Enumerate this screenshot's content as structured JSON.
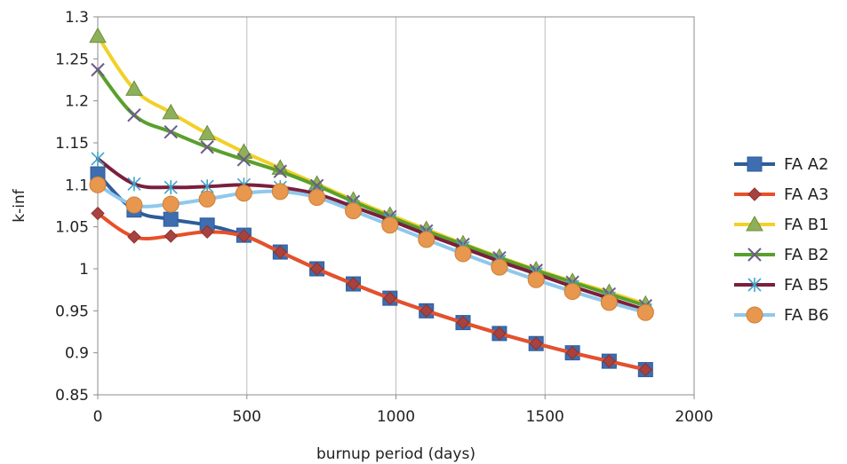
{
  "chart_data": {
    "type": "line",
    "title": "",
    "xlabel": "burnup period (days)",
    "ylabel": "k-inf",
    "xlim": [
      0,
      2000
    ],
    "ylim": [
      0.85,
      1.3
    ],
    "x_ticks": [
      "0",
      "500",
      "1000",
      "1500",
      "2000"
    ],
    "y_ticks": [
      "0.85",
      "0.9",
      "0.95",
      "1",
      "1.05",
      "1.1",
      "1.15",
      "1.2",
      "1.25",
      "1.3"
    ],
    "grid": "vertical",
    "legend_position": "right",
    "x": [
      0,
      122,
      245,
      367,
      490,
      612,
      735,
      857,
      980,
      1102,
      1225,
      1347,
      1470,
      1592,
      1715,
      1837
    ],
    "series": [
      {
        "name": "FA A2",
        "color": "#2E5C9A",
        "marker": "square",
        "values": [
          1.113,
          1.07,
          1.059,
          1.052,
          1.04,
          1.02,
          1.0,
          0.982,
          0.965,
          0.95,
          0.936,
          0.923,
          0.911,
          0.9,
          0.89,
          0.88
        ]
      },
      {
        "name": "FA A3",
        "color": "#E8502A",
        "marker": "diamond",
        "values": [
          1.066,
          1.038,
          1.039,
          1.044,
          1.039,
          1.02,
          1.0,
          0.982,
          0.965,
          0.95,
          0.936,
          0.923,
          0.911,
          0.9,
          0.89,
          0.88
        ]
      },
      {
        "name": "FA B1",
        "color": "#F2D027",
        "marker": "triangle",
        "values": [
          1.277,
          1.214,
          1.186,
          1.161,
          1.139,
          1.12,
          1.101,
          1.082,
          1.064,
          1.047,
          1.03,
          1.014,
          0.999,
          0.985,
          0.972,
          0.958
        ]
      },
      {
        "name": "FA B2",
        "color": "#5AA02C",
        "marker": "x",
        "values": [
          1.237,
          1.183,
          1.163,
          1.145,
          1.13,
          1.116,
          1.099,
          1.08,
          1.062,
          1.045,
          1.029,
          1.013,
          0.998,
          0.984,
          0.97,
          0.956
        ]
      },
      {
        "name": "FA B5",
        "color": "#7A1F3D",
        "marker": "asterisk",
        "values": [
          1.131,
          1.101,
          1.097,
          1.098,
          1.1,
          1.097,
          1.089,
          1.074,
          1.058,
          1.041,
          1.025,
          1.009,
          0.994,
          0.979,
          0.965,
          0.951
        ]
      },
      {
        "name": "FA B6",
        "color": "#8FC8EC",
        "marker": "circle",
        "values": [
          1.1,
          1.076,
          1.077,
          1.083,
          1.09,
          1.092,
          1.085,
          1.069,
          1.052,
          1.035,
          1.018,
          1.002,
          0.987,
          0.973,
          0.96,
          0.948
        ]
      }
    ]
  }
}
